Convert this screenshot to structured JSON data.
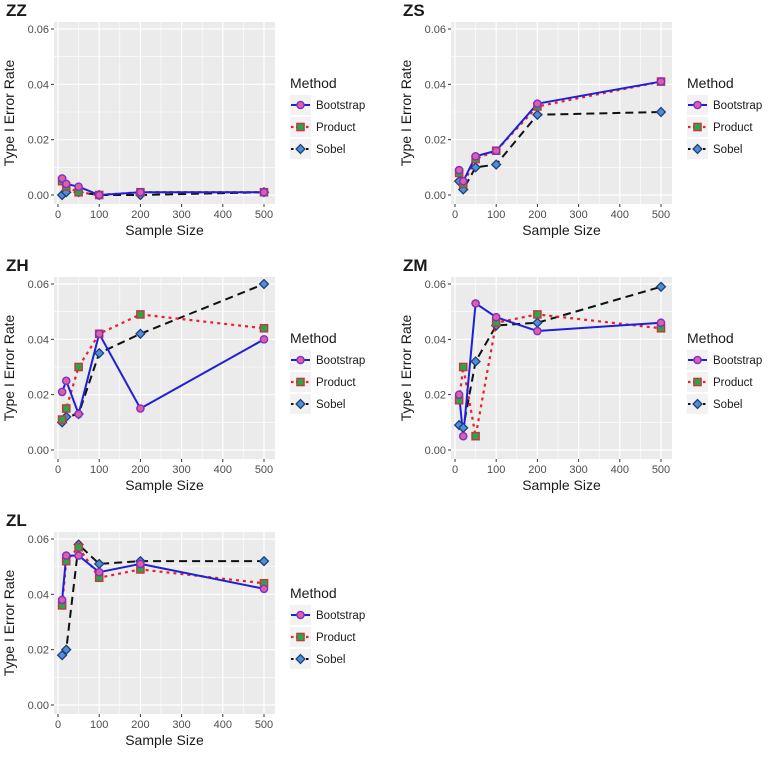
{
  "figure": {
    "legend_title": "Method",
    "xlabel": "Sample Size",
    "ylabel": "Type I Error Rate",
    "x_ticks": [
      0,
      100,
      200,
      300,
      400,
      500
    ],
    "y_ticks": [
      "0.00",
      "0.02",
      "0.04",
      "0.06"
    ],
    "colors": {
      "panel_bg": "#ebebeb",
      "grid": "#ffffff",
      "Bootstrap_line": "#1f1fd6",
      "Bootstrap_marker_fill": "#e05fa0",
      "Bootstrap_marker_edge": "#7a2fd0",
      "Product_line": "#e8212b",
      "Product_marker_fill": "#2aa54a",
      "Product_marker_edge": "#c0393f",
      "Sobel_line": "#111111",
      "Sobel_marker_fill": "#4f8fd6",
      "Sobel_marker_edge": "#1d3f7a"
    }
  },
  "chart_data": [
    {
      "type": "line",
      "title": "ZZ",
      "xlabel": "Sample Size",
      "ylabel": "Type I Error Rate",
      "xlim": [
        0,
        500
      ],
      "ylim": [
        0,
        0.06
      ],
      "grid": true,
      "legend": "right",
      "x": [
        10,
        20,
        50,
        100,
        200,
        500
      ],
      "series": [
        {
          "name": "Bootstrap",
          "values": [
            0.006,
            0.004,
            0.003,
            0.0,
            0.001,
            0.001
          ]
        },
        {
          "name": "Product",
          "values": [
            0.005,
            0.003,
            0.001,
            0.0,
            0.001,
            0.001
          ]
        },
        {
          "name": "Sobel",
          "values": [
            0.0,
            0.001,
            0.001,
            0.0,
            0.0,
            0.001
          ]
        }
      ]
    },
    {
      "type": "line",
      "title": "ZS",
      "xlabel": "Sample Size",
      "ylabel": "Type I Error Rate",
      "xlim": [
        0,
        500
      ],
      "ylim": [
        0,
        0.06
      ],
      "grid": true,
      "legend": "right",
      "x": [
        10,
        20,
        50,
        100,
        200,
        500
      ],
      "series": [
        {
          "name": "Bootstrap",
          "values": [
            0.009,
            0.005,
            0.014,
            0.016,
            0.033,
            0.041
          ]
        },
        {
          "name": "Product",
          "values": [
            0.008,
            0.004,
            0.013,
            0.016,
            0.032,
            0.041
          ]
        },
        {
          "name": "Sobel",
          "values": [
            0.005,
            0.002,
            0.01,
            0.011,
            0.029,
            0.03
          ]
        }
      ]
    },
    {
      "type": "line",
      "title": "ZH",
      "xlabel": "Sample Size",
      "ylabel": "Type I Error Rate",
      "xlim": [
        0,
        500
      ],
      "ylim": [
        0,
        0.06
      ],
      "grid": true,
      "legend": "right",
      "x": [
        10,
        20,
        50,
        100,
        200,
        500
      ],
      "series": [
        {
          "name": "Bootstrap",
          "values": [
            0.021,
            0.025,
            0.013,
            0.042,
            0.015,
            0.04
          ]
        },
        {
          "name": "Product",
          "values": [
            0.011,
            0.015,
            0.03,
            0.042,
            0.049,
            0.044
          ]
        },
        {
          "name": "Sobel",
          "values": [
            0.01,
            0.012,
            0.013,
            0.035,
            0.042,
            0.06
          ]
        }
      ]
    },
    {
      "type": "line",
      "title": "ZM",
      "xlabel": "Sample Size",
      "ylabel": "Type I Error Rate",
      "xlim": [
        0,
        500
      ],
      "ylim": [
        0,
        0.06
      ],
      "grid": true,
      "legend": "right",
      "x": [
        10,
        20,
        50,
        100,
        200,
        500
      ],
      "series": [
        {
          "name": "Bootstrap",
          "values": [
            0.02,
            0.005,
            0.053,
            0.048,
            0.043,
            0.046
          ]
        },
        {
          "name": "Product",
          "values": [
            0.018,
            0.03,
            0.005,
            0.046,
            0.049,
            0.044
          ]
        },
        {
          "name": "Sobel",
          "values": [
            0.009,
            0.008,
            0.032,
            0.045,
            0.046,
            0.059
          ]
        }
      ]
    },
    {
      "type": "line",
      "title": "ZL",
      "xlabel": "Sample Size",
      "ylabel": "Type I Error Rate",
      "xlim": [
        0,
        500
      ],
      "ylim": [
        0,
        0.06
      ],
      "grid": true,
      "legend": "right",
      "x": [
        10,
        20,
        50,
        100,
        200,
        500
      ],
      "series": [
        {
          "name": "Bootstrap",
          "values": [
            0.038,
            0.054,
            0.054,
            0.048,
            0.051,
            0.042
          ]
        },
        {
          "name": "Product",
          "values": [
            0.036,
            0.052,
            0.057,
            0.046,
            0.049,
            0.044
          ]
        },
        {
          "name": "Sobel",
          "values": [
            0.018,
            0.02,
            0.058,
            0.051,
            0.052,
            0.052
          ]
        }
      ]
    }
  ]
}
